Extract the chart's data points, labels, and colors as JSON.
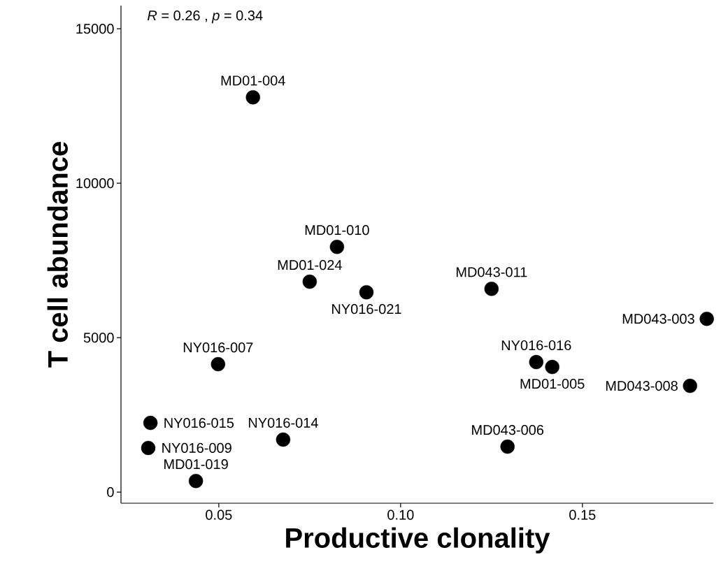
{
  "chart_data": {
    "type": "scatter",
    "xlabel": "Productive clonality",
    "ylabel": "T cell abundance",
    "x": [
      0.0594,
      0.0825,
      0.075,
      0.0906,
      0.125,
      0.1842,
      0.1373,
      0.1417,
      0.1796,
      0.0498,
      0.0312,
      0.0306,
      0.0677,
      0.1294,
      0.0437
    ],
    "series": [
      {
        "color": "#000000",
        "values": [
          12780,
          7940,
          6810,
          6470,
          6580,
          5610,
          4210,
          4050,
          3440,
          4140,
          2240,
          1430,
          1700,
          1470,
          360
        ]
      }
    ],
    "xlim": [
      0.0231,
      0.186
    ],
    "ylim": [
      -360,
      15750
    ],
    "xticks": [
      0.05,
      {
        "value": 0.1,
        "label": "0.10"
      },
      0.15
    ],
    "yticks": [
      0,
      5000,
      10000,
      15000
    ],
    "grid": false,
    "annotations": [
      "*R* = 0.26 , *p* = 0.34",
      {
        "text": "MD01-004",
        "x": 0.0594,
        "y": 12780
      },
      {
        "text": "MD01-010",
        "x": 0.0825,
        "y": 7940
      },
      {
        "text": "MD01-024",
        "x": 0.075,
        "y": 6810
      },
      {
        "text": "NY016-021",
        "x": 0.0906,
        "y": 6470
      },
      {
        "text": "MD043-011",
        "x": 0.125,
        "y": 6580
      },
      {
        "text": "MD043-003",
        "x": 0.1842,
        "y": 5610
      },
      {
        "text": "NY016-016",
        "x": 0.1373,
        "y": 4210
      },
      {
        "text": "MD01-005",
        "x": 0.1417,
        "y": 4050
      },
      {
        "text": "MD043-008",
        "x": 0.1796,
        "y": 3440
      },
      {
        "text": "NY016-007",
        "x": 0.0498,
        "y": 4140
      },
      {
        "text": "NY016-015",
        "x": 0.0312,
        "y": 2240
      },
      {
        "text": "NY016-009",
        "x": 0.0306,
        "y": 1430
      },
      {
        "text": "NY016-014",
        "x": 0.0677,
        "y": 1700
      },
      {
        "text": "MD043-006",
        "x": 0.1294,
        "y": 1470
      },
      {
        "text": "MD01-019",
        "x": 0.0437,
        "y": 360
      }
    ]
  }
}
